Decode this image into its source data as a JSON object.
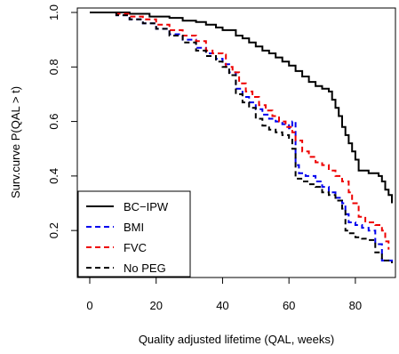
{
  "chart_data": {
    "type": "line",
    "title": "",
    "xlabel": "Quality adjusted lifetime (QAL, weeks)",
    "ylabel": "Surv.curve P(QAL > t)",
    "xlim": [
      0,
      91
    ],
    "ylim": [
      0.07,
      1.0
    ],
    "xticks": [
      0,
      20,
      40,
      60,
      80
    ],
    "yticks": [
      0.2,
      0.4,
      0.6,
      0.8,
      1.0
    ],
    "xtick_labels": [
      "0",
      "20",
      "40",
      "60",
      "80"
    ],
    "ytick_labels": [
      "0.2",
      "0.4",
      "0.6",
      "0.8",
      "1.0"
    ],
    "grid": false,
    "legend_position": "bottom-left",
    "series": [
      {
        "name": "BC−IPW",
        "color": "#000000",
        "dash": "solid",
        "points": [
          [
            0,
            1.0
          ],
          [
            10,
            1.0
          ],
          [
            12,
            0.995
          ],
          [
            18,
            0.985
          ],
          [
            24,
            0.98
          ],
          [
            28,
            0.97
          ],
          [
            32,
            0.965
          ],
          [
            35,
            0.955
          ],
          [
            38,
            0.945
          ],
          [
            40,
            0.935
          ],
          [
            44,
            0.915
          ],
          [
            46,
            0.905
          ],
          [
            48,
            0.89
          ],
          [
            50,
            0.875
          ],
          [
            52,
            0.86
          ],
          [
            54,
            0.85
          ],
          [
            56,
            0.835
          ],
          [
            58,
            0.82
          ],
          [
            60,
            0.805
          ],
          [
            62,
            0.785
          ],
          [
            64,
            0.765
          ],
          [
            66,
            0.745
          ],
          [
            68,
            0.73
          ],
          [
            70,
            0.72
          ],
          [
            72,
            0.71
          ],
          [
            73,
            0.68
          ],
          [
            74,
            0.65
          ],
          [
            75,
            0.62
          ],
          [
            76,
            0.58
          ],
          [
            77,
            0.55
          ],
          [
            78,
            0.52
          ],
          [
            79,
            0.49
          ],
          [
            80,
            0.46
          ],
          [
            81,
            0.42
          ],
          [
            84,
            0.41
          ],
          [
            87,
            0.4
          ],
          [
            88,
            0.38
          ],
          [
            89,
            0.35
          ],
          [
            90,
            0.33
          ],
          [
            91,
            0.3
          ]
        ]
      },
      {
        "name": "BMI",
        "color": "#0000ee",
        "dash": "dashed",
        "points": [
          [
            0,
            1.0
          ],
          [
            8,
            0.99
          ],
          [
            12,
            0.975
          ],
          [
            16,
            0.96
          ],
          [
            20,
            0.94
          ],
          [
            24,
            0.92
          ],
          [
            28,
            0.9
          ],
          [
            32,
            0.87
          ],
          [
            35,
            0.85
          ],
          [
            38,
            0.83
          ],
          [
            40,
            0.81
          ],
          [
            42,
            0.78
          ],
          [
            44,
            0.72
          ],
          [
            46,
            0.69
          ],
          [
            48,
            0.67
          ],
          [
            50,
            0.645
          ],
          [
            52,
            0.625
          ],
          [
            54,
            0.61
          ],
          [
            56,
            0.6
          ],
          [
            58,
            0.59
          ],
          [
            60,
            0.575
          ],
          [
            61,
            0.6
          ],
          [
            62,
            0.44
          ],
          [
            63,
            0.41
          ],
          [
            65,
            0.4
          ],
          [
            68,
            0.38
          ],
          [
            70,
            0.36
          ],
          [
            72,
            0.34
          ],
          [
            74,
            0.32
          ],
          [
            76,
            0.3
          ],
          [
            77,
            0.26
          ],
          [
            78,
            0.23
          ],
          [
            80,
            0.22
          ],
          [
            82,
            0.21
          ],
          [
            84,
            0.2
          ],
          [
            86,
            0.15
          ],
          [
            88,
            0.09
          ],
          [
            91,
            0.08
          ]
        ]
      },
      {
        "name": "FVC",
        "color": "#ee0000",
        "dash": "dashed",
        "points": [
          [
            0,
            1.0
          ],
          [
            8,
            0.995
          ],
          [
            12,
            0.985
          ],
          [
            16,
            0.975
          ],
          [
            20,
            0.955
          ],
          [
            24,
            0.935
          ],
          [
            28,
            0.915
          ],
          [
            32,
            0.895
          ],
          [
            35,
            0.86
          ],
          [
            37,
            0.85
          ],
          [
            40,
            0.845
          ],
          [
            41,
            0.8
          ],
          [
            43,
            0.78
          ],
          [
            45,
            0.74
          ],
          [
            47,
            0.71
          ],
          [
            49,
            0.69
          ],
          [
            51,
            0.66
          ],
          [
            53,
            0.64
          ],
          [
            55,
            0.62
          ],
          [
            57,
            0.6
          ],
          [
            59,
            0.58
          ],
          [
            61,
            0.56
          ],
          [
            62,
            0.53
          ],
          [
            64,
            0.49
          ],
          [
            66,
            0.47
          ],
          [
            68,
            0.45
          ],
          [
            70,
            0.44
          ],
          [
            72,
            0.42
          ],
          [
            74,
            0.4
          ],
          [
            76,
            0.38
          ],
          [
            78,
            0.34
          ],
          [
            79,
            0.3
          ],
          [
            81,
            0.25
          ],
          [
            83,
            0.23
          ],
          [
            86,
            0.22
          ],
          [
            88,
            0.2
          ],
          [
            89,
            0.16
          ],
          [
            90,
            0.13
          ]
        ]
      },
      {
        "name": "No PEG",
        "color": "#000000",
        "dash": "dashed",
        "points": [
          [
            0,
            1.0
          ],
          [
            8,
            0.99
          ],
          [
            12,
            0.975
          ],
          [
            16,
            0.96
          ],
          [
            20,
            0.94
          ],
          [
            24,
            0.915
          ],
          [
            28,
            0.89
          ],
          [
            32,
            0.86
          ],
          [
            35,
            0.84
          ],
          [
            38,
            0.82
          ],
          [
            40,
            0.8
          ],
          [
            42,
            0.77
          ],
          [
            44,
            0.7
          ],
          [
            46,
            0.67
          ],
          [
            48,
            0.65
          ],
          [
            50,
            0.61
          ],
          [
            52,
            0.585
          ],
          [
            54,
            0.57
          ],
          [
            56,
            0.56
          ],
          [
            58,
            0.55
          ],
          [
            60,
            0.54
          ],
          [
            61,
            0.5
          ],
          [
            62,
            0.39
          ],
          [
            64,
            0.38
          ],
          [
            66,
            0.37
          ],
          [
            68,
            0.36
          ],
          [
            70,
            0.34
          ],
          [
            72,
            0.33
          ],
          [
            74,
            0.31
          ],
          [
            76,
            0.28
          ],
          [
            77,
            0.2
          ],
          [
            78,
            0.19
          ],
          [
            80,
            0.175
          ],
          [
            82,
            0.17
          ],
          [
            84,
            0.165
          ],
          [
            86,
            0.12
          ],
          [
            88,
            0.09
          ],
          [
            91,
            0.08
          ]
        ]
      }
    ]
  }
}
